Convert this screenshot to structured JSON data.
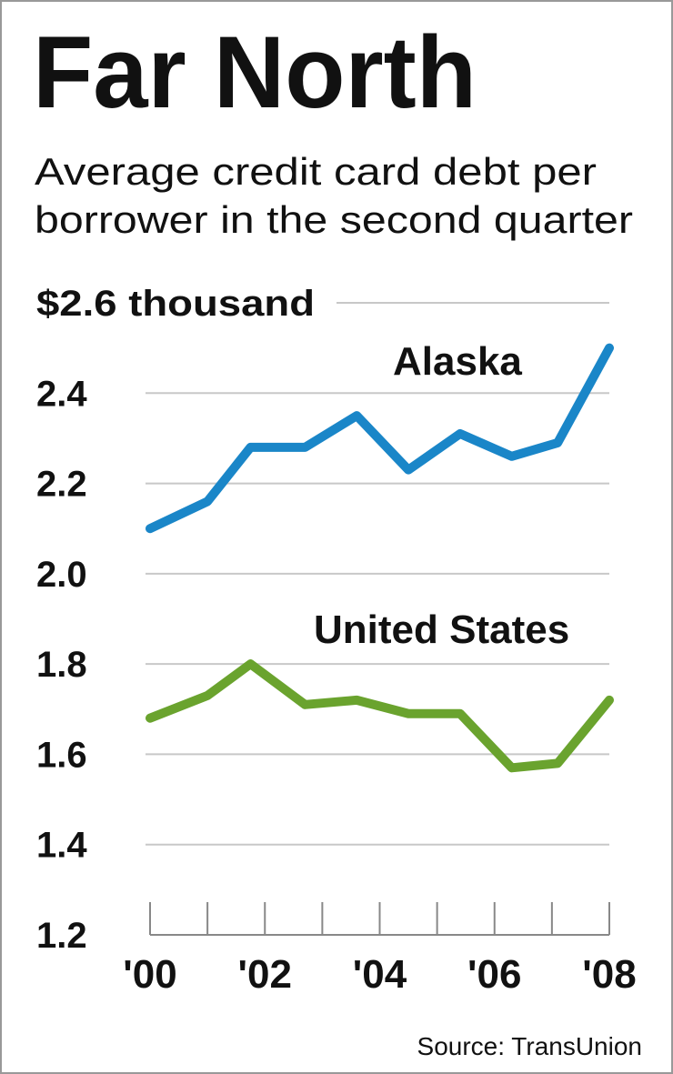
{
  "chart_data": {
    "type": "line",
    "title": "Far North",
    "subtitle": [
      "Average credit card debt per",
      "borrower in the second quarter"
    ],
    "source": "Source: TransUnion",
    "x": [
      2000,
      2001,
      2001.75,
      2002.7,
      2003.6,
      2004.5,
      2005.4,
      2006.3,
      2007.1,
      2008
    ],
    "xlim": [
      2000,
      2008
    ],
    "xticks": [
      {
        "value": 2000,
        "label": "'00"
      },
      {
        "value": 2002,
        "label": "'02"
      },
      {
        "value": 2004,
        "label": "'04"
      },
      {
        "value": 2006,
        "label": "'06"
      },
      {
        "value": 2008,
        "label": "'08"
      }
    ],
    "xminor_ticks": [
      2001,
      2003,
      2005,
      2007
    ],
    "ylim": [
      1.2,
      2.6
    ],
    "yticks": [
      {
        "value": 1.2,
        "label": "1.2"
      },
      {
        "value": 1.4,
        "label": "1.4"
      },
      {
        "value": 1.6,
        "label": "1.6"
      },
      {
        "value": 1.8,
        "label": "1.8"
      },
      {
        "value": 2.0,
        "label": "2.0"
      },
      {
        "value": 2.2,
        "label": "2.2"
      },
      {
        "value": 2.4,
        "label": "2.4"
      },
      {
        "value": 2.6,
        "label": "$2.6 thousand"
      }
    ],
    "grid": true,
    "series": [
      {
        "name": "Alaska",
        "color": "#1a86c8",
        "values": [
          2.1,
          2.16,
          2.28,
          2.28,
          2.35,
          2.23,
          2.31,
          2.26,
          2.29,
          2.5
        ]
      },
      {
        "name": "United States",
        "color": "#6aa32e",
        "values": [
          1.68,
          1.73,
          1.8,
          1.71,
          1.72,
          1.69,
          1.69,
          1.57,
          1.58,
          1.72
        ]
      }
    ]
  }
}
